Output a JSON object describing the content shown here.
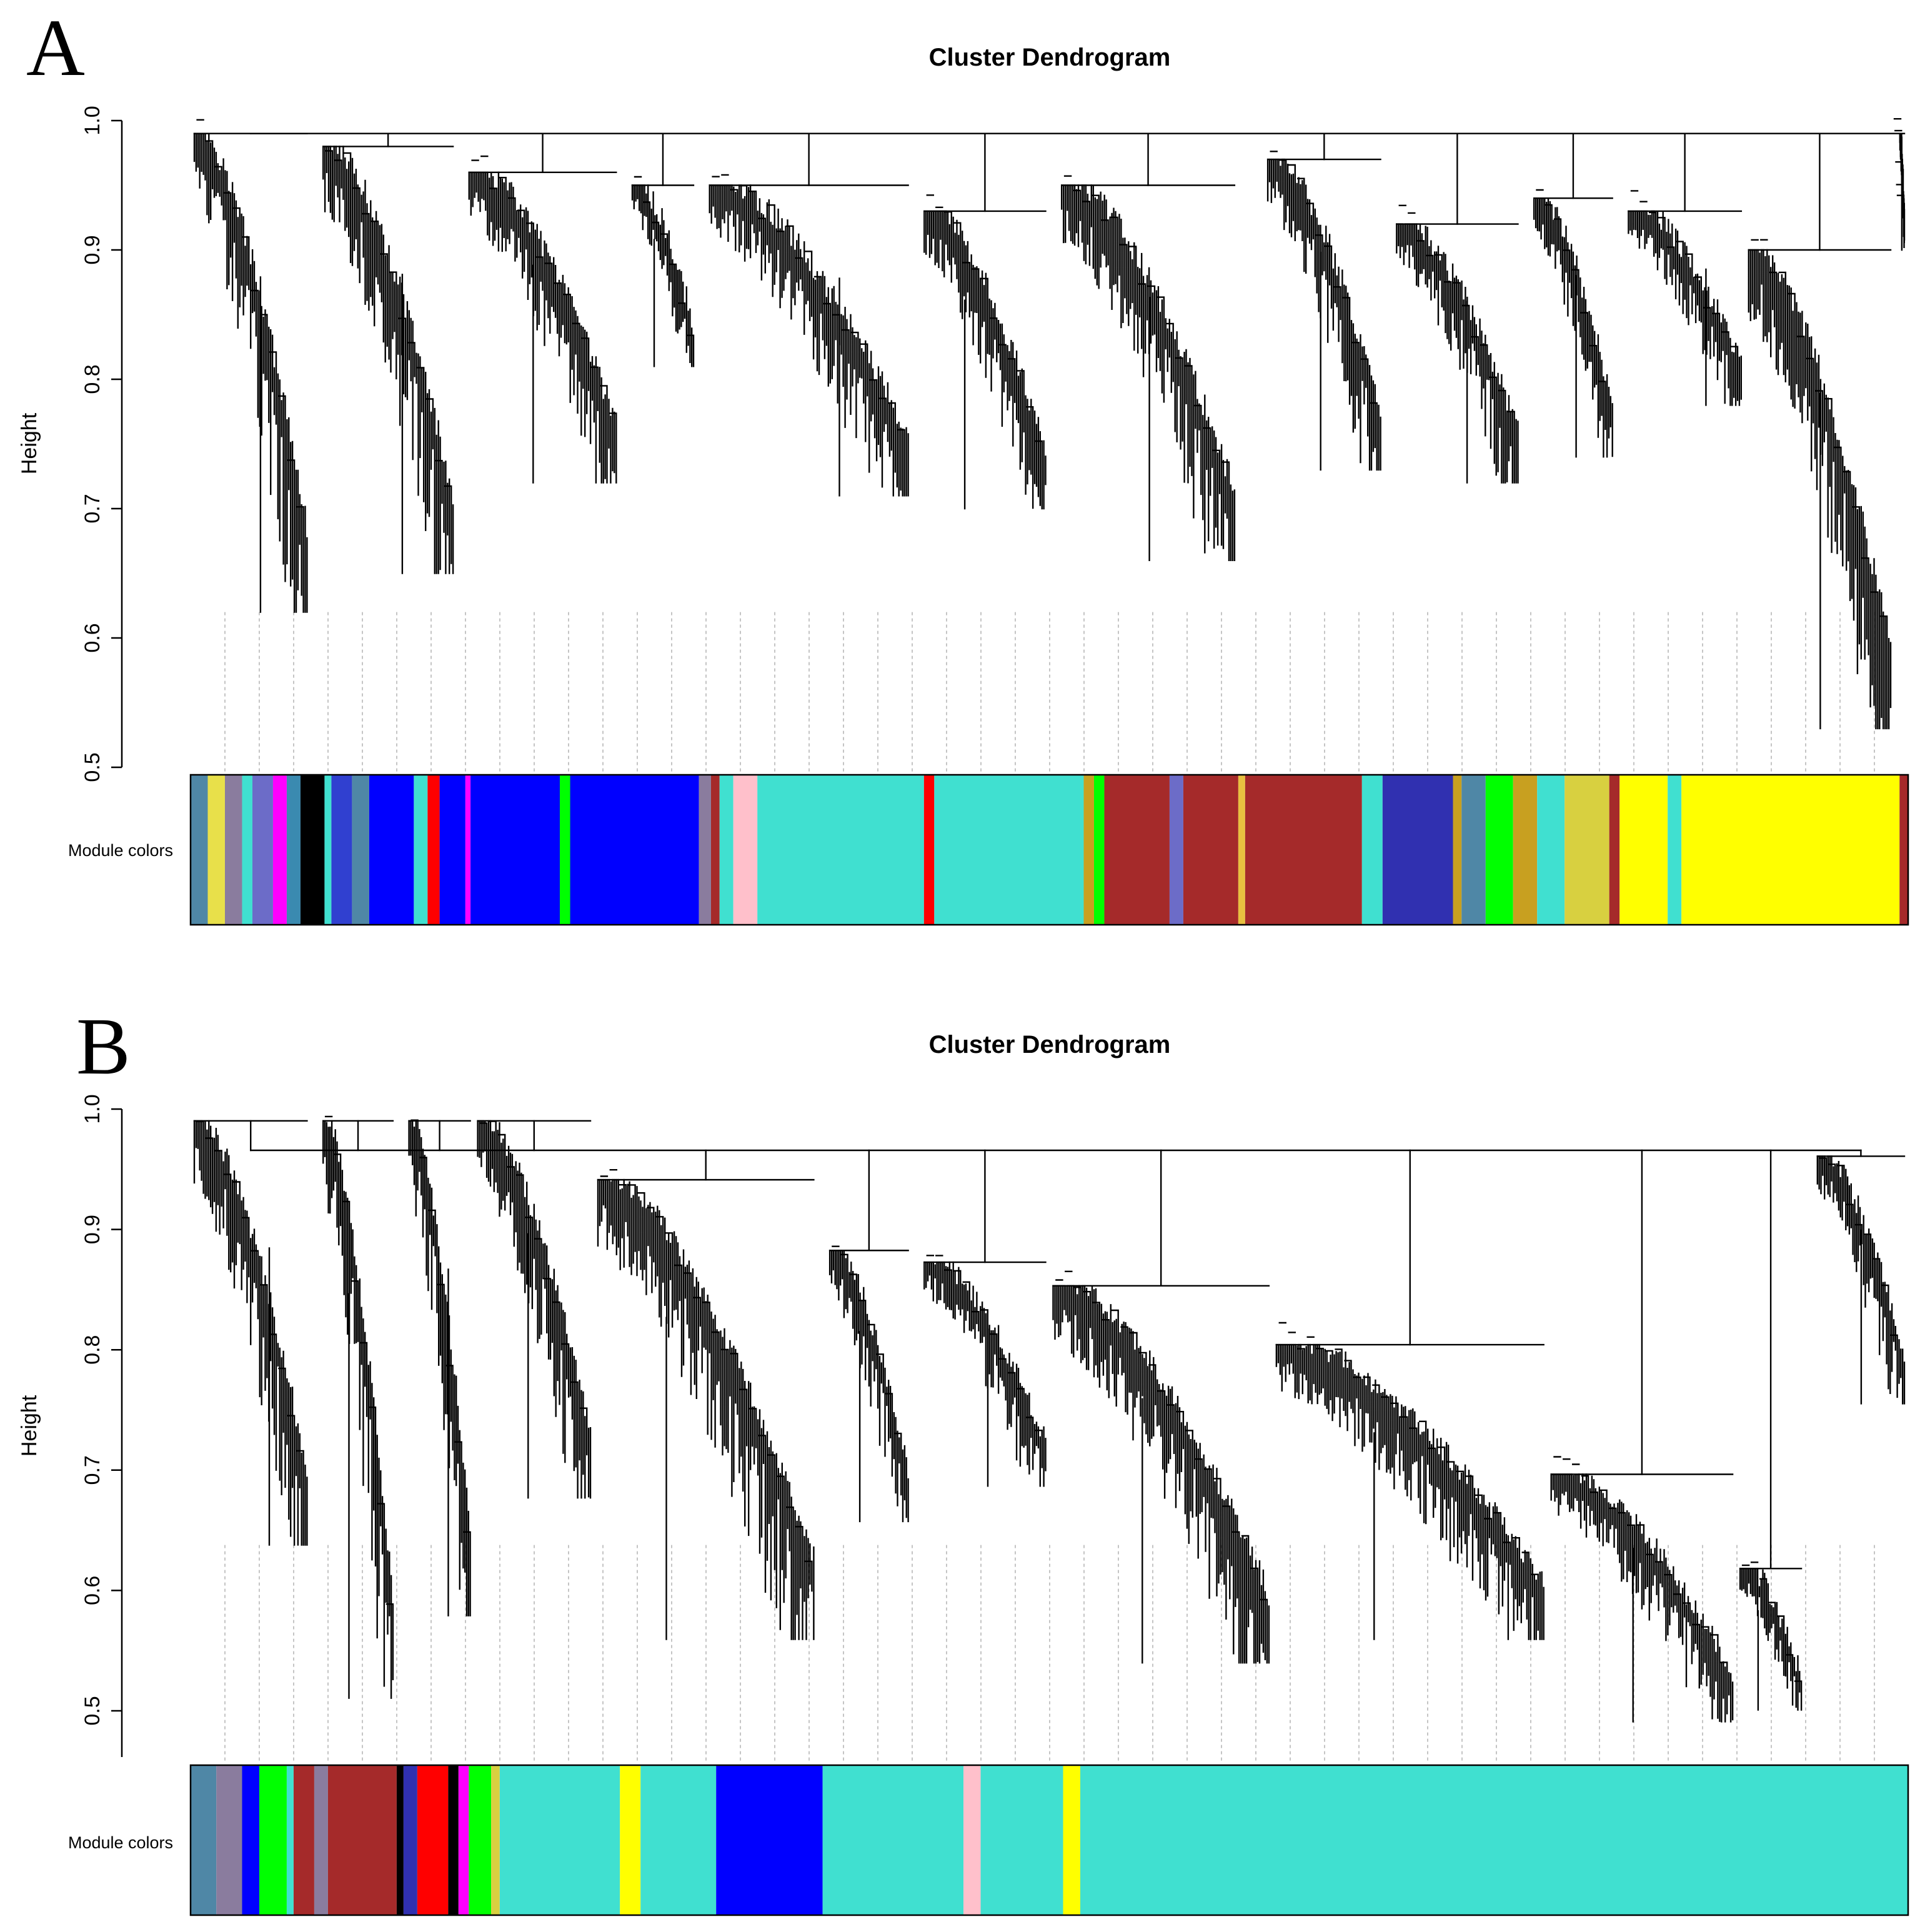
{
  "chart_data": [
    {
      "type": "dendrogram",
      "panel_label": "A",
      "title": "Cluster Dendrogram",
      "xlabel": "",
      "ylabel": "Height",
      "ylim": [
        0.5,
        1.0
      ],
      "yticks": [
        "0.5",
        "0.6",
        "0.7",
        "0.8",
        "0.9",
        "1.0"
      ],
      "merge_height_top": 0.99,
      "clusters": [
        {
          "start": 0.0,
          "end": 0.07,
          "top": 0.99,
          "min": 0.62
        },
        {
          "start": 0.075,
          "end": 0.155,
          "top": 0.98,
          "min": 0.65
        },
        {
          "start": 0.16,
          "end": 0.25,
          "top": 0.96,
          "min": 0.72
        },
        {
          "start": 0.255,
          "end": 0.295,
          "top": 0.95,
          "min": 0.81
        },
        {
          "start": 0.3,
          "end": 0.42,
          "top": 0.95,
          "min": 0.71
        },
        {
          "start": 0.425,
          "end": 0.5,
          "top": 0.93,
          "min": 0.7
        },
        {
          "start": 0.505,
          "end": 0.61,
          "top": 0.95,
          "min": 0.66
        },
        {
          "start": 0.625,
          "end": 0.695,
          "top": 0.97,
          "min": 0.73
        },
        {
          "start": 0.7,
          "end": 0.775,
          "top": 0.92,
          "min": 0.72
        },
        {
          "start": 0.78,
          "end": 0.83,
          "top": 0.94,
          "min": 0.74
        },
        {
          "start": 0.835,
          "end": 0.905,
          "top": 0.93,
          "min": 0.78
        },
        {
          "start": 0.905,
          "end": 0.992,
          "top": 0.9,
          "min": 0.53
        },
        {
          "start": 0.993,
          "end": 1.0,
          "top": 0.99,
          "min": 0.9
        }
      ],
      "module_colors_label": "Module colors",
      "module_colors": [
        {
          "color": "#4F87A6",
          "start": 0.0,
          "end": 0.01
        },
        {
          "color": "#E8E04A",
          "start": 0.01,
          "end": 0.02
        },
        {
          "color": "#8A7C9E",
          "start": 0.02,
          "end": 0.03
        },
        {
          "color": "#40E0D0",
          "start": 0.03,
          "end": 0.036
        },
        {
          "color": "#6C6CC8",
          "start": 0.036,
          "end": 0.048
        },
        {
          "color": "#FF00FF",
          "start": 0.048,
          "end": 0.056
        },
        {
          "color": "#3A8AB0",
          "start": 0.056,
          "end": 0.064
        },
        {
          "color": "#000000",
          "start": 0.064,
          "end": 0.078
        },
        {
          "color": "#40E0D0",
          "start": 0.078,
          "end": 0.082
        },
        {
          "color": "#3040D0",
          "start": 0.082,
          "end": 0.094
        },
        {
          "color": "#4F87A6",
          "start": 0.094,
          "end": 0.104
        },
        {
          "color": "#0000FF",
          "start": 0.104,
          "end": 0.13
        },
        {
          "color": "#40E0D0",
          "start": 0.13,
          "end": 0.138
        },
        {
          "color": "#FF0000",
          "start": 0.138,
          "end": 0.145
        },
        {
          "color": "#0000FF",
          "start": 0.145,
          "end": 0.16
        },
        {
          "color": "#FF00FF",
          "start": 0.16,
          "end": 0.163
        },
        {
          "color": "#0000FF",
          "start": 0.163,
          "end": 0.215
        },
        {
          "color": "#00FF00",
          "start": 0.215,
          "end": 0.221
        },
        {
          "color": "#0000FF",
          "start": 0.221,
          "end": 0.296
        },
        {
          "color": "#8A7C9E",
          "start": 0.296,
          "end": 0.303
        },
        {
          "color": "#A52A2A",
          "start": 0.303,
          "end": 0.308
        },
        {
          "color": "#40E0D0",
          "start": 0.308,
          "end": 0.316
        },
        {
          "color": "#FFC0CB",
          "start": 0.316,
          "end": 0.33
        },
        {
          "color": "#40E0D0",
          "start": 0.33,
          "end": 0.427
        },
        {
          "color": "#FF0000",
          "start": 0.427,
          "end": 0.433
        },
        {
          "color": "#40E0D0",
          "start": 0.433,
          "end": 0.52
        },
        {
          "color": "#C8A020",
          "start": 0.52,
          "end": 0.526
        },
        {
          "color": "#00FF00",
          "start": 0.526,
          "end": 0.532
        },
        {
          "color": "#A52A2A",
          "start": 0.532,
          "end": 0.57
        },
        {
          "color": "#6C6CC8",
          "start": 0.57,
          "end": 0.578
        },
        {
          "color": "#A52A2A",
          "start": 0.578,
          "end": 0.61
        },
        {
          "color": "#E8C040",
          "start": 0.61,
          "end": 0.614
        },
        {
          "color": "#A52A2A",
          "start": 0.614,
          "end": 0.682
        },
        {
          "color": "#40E0D0",
          "start": 0.682,
          "end": 0.694
        },
        {
          "color": "#3030B0",
          "start": 0.694,
          "end": 0.735
        },
        {
          "color": "#C8A020",
          "start": 0.735,
          "end": 0.74
        },
        {
          "color": "#4F87A6",
          "start": 0.74,
          "end": 0.754
        },
        {
          "color": "#00FF00",
          "start": 0.754,
          "end": 0.77
        },
        {
          "color": "#C8A020",
          "start": 0.77,
          "end": 0.784
        },
        {
          "color": "#40E0D0",
          "start": 0.784,
          "end": 0.8
        },
        {
          "color": "#D8D040",
          "start": 0.8,
          "end": 0.826
        },
        {
          "color": "#A52A2A",
          "start": 0.826,
          "end": 0.832
        },
        {
          "color": "#FFFF00",
          "start": 0.832,
          "end": 0.86
        },
        {
          "color": "#40E0D0",
          "start": 0.86,
          "end": 0.868
        },
        {
          "color": "#FFFF00",
          "start": 0.868,
          "end": 0.995
        },
        {
          "color": "#A52A2A",
          "start": 0.995,
          "end": 1.0
        }
      ]
    },
    {
      "type": "dendrogram",
      "panel_label": "B",
      "title": "Cluster Dendrogram",
      "xlabel": "",
      "ylabel": "Height",
      "ylim": [
        0.45,
        1.0
      ],
      "yticks": [
        "0.5",
        "0.6",
        "0.7",
        "0.8",
        "0.9",
        "1.0"
      ],
      "merge_height_top": 0.965,
      "clusters": [
        {
          "start": 0.0,
          "end": 0.07,
          "top": 0.99,
          "min": 0.63
        },
        {
          "start": 0.075,
          "end": 0.12,
          "top": 0.99,
          "min": 0.5
        },
        {
          "start": 0.125,
          "end": 0.165,
          "top": 0.99,
          "min": 0.57
        },
        {
          "start": 0.165,
          "end": 0.235,
          "top": 0.99,
          "min": 0.67
        },
        {
          "start": 0.235,
          "end": 0.365,
          "top": 0.94,
          "min": 0.55
        },
        {
          "start": 0.37,
          "end": 0.42,
          "top": 0.88,
          "min": 0.65
        },
        {
          "start": 0.425,
          "end": 0.5,
          "top": 0.87,
          "min": 0.68
        },
        {
          "start": 0.5,
          "end": 0.63,
          "top": 0.85,
          "min": 0.53
        },
        {
          "start": 0.63,
          "end": 0.79,
          "top": 0.8,
          "min": 0.55
        },
        {
          "start": 0.79,
          "end": 0.9,
          "top": 0.69,
          "min": 0.48
        },
        {
          "start": 0.9,
          "end": 0.94,
          "top": 0.61,
          "min": 0.49
        },
        {
          "start": 0.945,
          "end": 1.0,
          "top": 0.96,
          "min": 0.75
        }
      ],
      "module_colors_label": "Module colors",
      "module_colors": [
        {
          "color": "#4F87A6",
          "start": 0.0,
          "end": 0.015
        },
        {
          "color": "#8A7C9E",
          "start": 0.015,
          "end": 0.03
        },
        {
          "color": "#0000FF",
          "start": 0.03,
          "end": 0.04
        },
        {
          "color": "#00FF00",
          "start": 0.04,
          "end": 0.056
        },
        {
          "color": "#40E0D0",
          "start": 0.056,
          "end": 0.06
        },
        {
          "color": "#A52A2A",
          "start": 0.06,
          "end": 0.072
        },
        {
          "color": "#8A7C9E",
          "start": 0.072,
          "end": 0.08
        },
        {
          "color": "#A52A2A",
          "start": 0.08,
          "end": 0.12
        },
        {
          "color": "#000000",
          "start": 0.12,
          "end": 0.124
        },
        {
          "color": "#3030B0",
          "start": 0.124,
          "end": 0.132
        },
        {
          "color": "#FF0000",
          "start": 0.132,
          "end": 0.15
        },
        {
          "color": "#000000",
          "start": 0.15,
          "end": 0.156
        },
        {
          "color": "#FF00FF",
          "start": 0.156,
          "end": 0.162
        },
        {
          "color": "#00FF00",
          "start": 0.162,
          "end": 0.175
        },
        {
          "color": "#D8D040",
          "start": 0.175,
          "end": 0.18
        },
        {
          "color": "#40E0D0",
          "start": 0.18,
          "end": 0.25
        },
        {
          "color": "#FFFF00",
          "start": 0.25,
          "end": 0.262
        },
        {
          "color": "#40E0D0",
          "start": 0.262,
          "end": 0.306
        },
        {
          "color": "#0000FF",
          "start": 0.306,
          "end": 0.368
        },
        {
          "color": "#40E0D0",
          "start": 0.368,
          "end": 0.45
        },
        {
          "color": "#FFC0CB",
          "start": 0.45,
          "end": 0.46
        },
        {
          "color": "#40E0D0",
          "start": 0.46,
          "end": 0.508
        },
        {
          "color": "#FFFF00",
          "start": 0.508,
          "end": 0.518
        },
        {
          "color": "#40E0D0",
          "start": 0.518,
          "end": 1.0
        }
      ]
    }
  ]
}
